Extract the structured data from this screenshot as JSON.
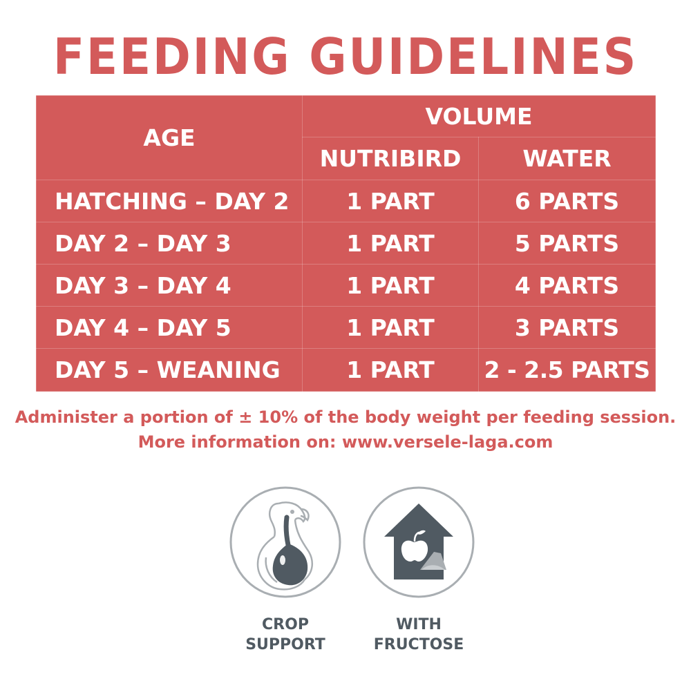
{
  "title": "FEEDING GUIDELINES",
  "colors": {
    "accent": "#d35a5a",
    "icon_dark": "#505a62",
    "icon_light": "#a9aeb2",
    "text_on_accent": "#ffffff"
  },
  "table": {
    "header": {
      "age": "AGE",
      "volume": "VOLUME",
      "nutribird": "NUTRIBIRD",
      "water": "WATER"
    },
    "rows": [
      {
        "age": "HATCHING – DAY 2",
        "nutribird": "1 PART",
        "water": "6 PARTS"
      },
      {
        "age": "DAY 2 – DAY 3",
        "nutribird": "1 PART",
        "water": "5 PARTS"
      },
      {
        "age": "DAY 3 – DAY 4",
        "nutribird": "1 PART",
        "water": "4 PARTS"
      },
      {
        "age": "DAY 4 – DAY 5",
        "nutribird": "1 PART",
        "water": "3 PARTS"
      },
      {
        "age": "DAY 5 – WEANING",
        "nutribird": "1 PART",
        "water": "2 - 2.5 PARTS"
      }
    ]
  },
  "notes": {
    "line1": "Administer a portion of ± 10% of the body weight per feeding session.",
    "line2": "More information on: www.versele-laga.com"
  },
  "badges": [
    {
      "icon": "bird-crop-icon",
      "line1": "CROP",
      "line2": "SUPPORT"
    },
    {
      "icon": "house-fructose-icon",
      "line1": "WITH",
      "line2": "FRUCTOSE"
    }
  ]
}
